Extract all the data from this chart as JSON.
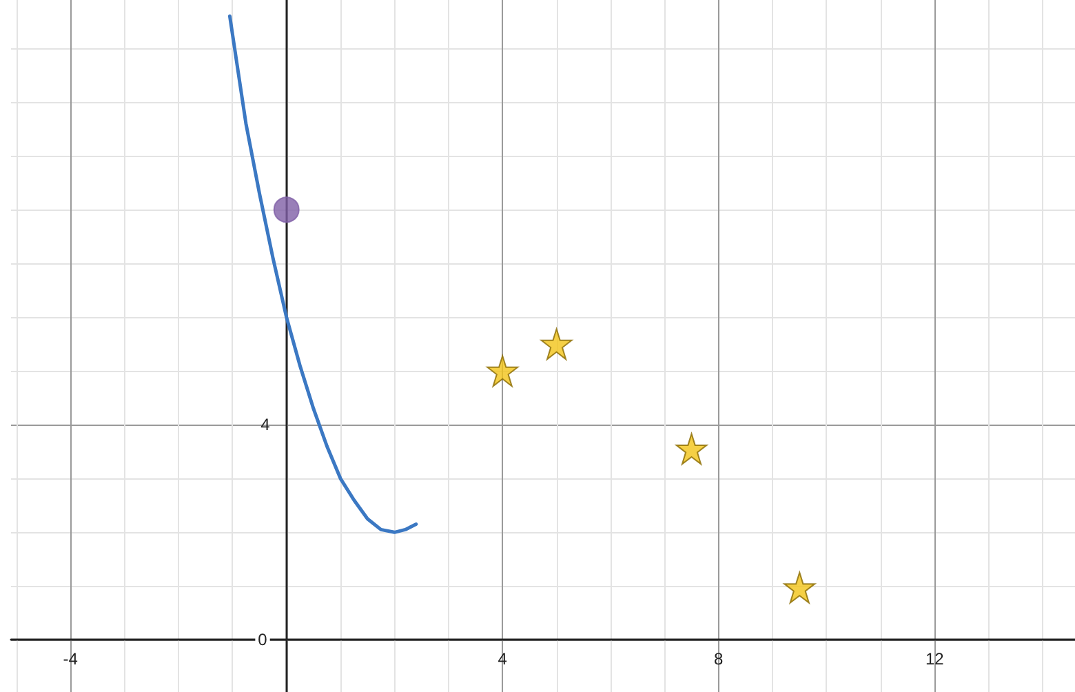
{
  "chart_data": {
    "type": "scatter",
    "xlim": [
      -5.1,
      14.6
    ],
    "ylim": [
      -0.97,
      11.9
    ],
    "xticks": [
      {
        "value": -5,
        "label": null
      },
      -4,
      {
        "value": -3,
        "label": null
      },
      {
        "value": -2,
        "label": null
      },
      {
        "value": -1,
        "label": null
      },
      {
        "value": 0,
        "label": null
      },
      {
        "value": 1,
        "label": null
      },
      {
        "value": 2,
        "label": null
      },
      {
        "value": 3,
        "label": null
      },
      4,
      {
        "value": 5,
        "label": null
      },
      {
        "value": 6,
        "label": null
      },
      {
        "value": 7,
        "label": null
      },
      8,
      {
        "value": 9,
        "label": null
      },
      {
        "value": 10,
        "label": null
      },
      {
        "value": 11,
        "label": null
      },
      12,
      {
        "value": 13,
        "label": null
      },
      {
        "value": 14,
        "label": null
      }
    ],
    "yticks": [
      0,
      {
        "value": 1,
        "label": null
      },
      {
        "value": 2,
        "label": null
      },
      {
        "value": 3,
        "label": null
      },
      4,
      {
        "value": 5,
        "label": null
      },
      {
        "value": 6,
        "label": null
      },
      {
        "value": 7,
        "label": null
      },
      {
        "value": 8,
        "label": null
      },
      {
        "value": 9,
        "label": null
      },
      {
        "value": 10,
        "label": null
      },
      {
        "value": 11,
        "label": null
      }
    ],
    "grid": true,
    "series": [
      {
        "type": "line",
        "color": "#3b78c3",
        "marker": "none",
        "line_style": "solid",
        "x": [
          -1.05,
          -0.75,
          -0.5,
          -0.25,
          0,
          0.25,
          0.5,
          0.75,
          1,
          1.25,
          1.5,
          1.75,
          2,
          2.2,
          2.4
        ],
        "values": [
          11.6,
          9.6,
          8.3,
          7.1,
          6.0,
          5.1,
          4.3,
          3.6,
          3.0,
          2.6,
          2.25,
          2.05,
          2.0,
          2.05,
          2.15
        ]
      },
      {
        "color": "#7f5fa6",
        "marker": "circle",
        "x": [
          0
        ],
        "values": [
          8
        ]
      },
      {
        "color": "#f2c418",
        "marker": "star",
        "x": [
          4,
          5,
          7.5,
          9.5
        ],
        "values": [
          5.0,
          5.5,
          3.55,
          0.97
        ]
      }
    ]
  }
}
